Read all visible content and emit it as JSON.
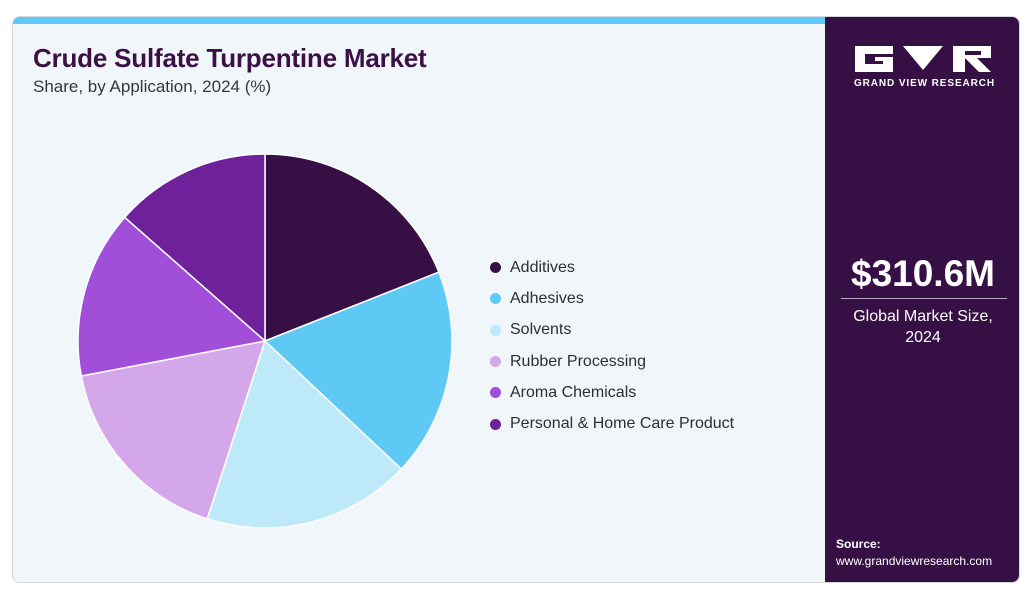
{
  "header": {
    "title": "Crude Sulfate Turpentine Market",
    "subtitle": "Share, by Application, 2024 (%)"
  },
  "chart_data": {
    "type": "pie",
    "categories": [
      "Additives",
      "Adhesives",
      "Solvents",
      "Rubber Processing",
      "Aroma Chemicals",
      "Personal & Home Care Product"
    ],
    "values": [
      19,
      18,
      18,
      17,
      14.5,
      13.5
    ],
    "colors": [
      "#361045",
      "#5ec9f5",
      "#bde9f9",
      "#d4a7ea",
      "#a14fd9",
      "#6e219a"
    ],
    "title": "Crude Sulfate Turpentine Market",
    "subtitle": "Share, by Application, 2024 (%)",
    "legend_position": "right",
    "start_angle": "top, clockwise"
  },
  "sidebar": {
    "brand": "GRAND VIEW RESEARCH",
    "market_size": "$310.6M",
    "market_caption_line1": "Global Market Size,",
    "market_caption_line2": "2024",
    "source_label": "Source:",
    "source_url": "www.grandviewresearch.com"
  },
  "colors": {
    "accent": "#5ec9f5",
    "sidebar_bg": "#361045",
    "card_bg": "#f1f6fa"
  }
}
